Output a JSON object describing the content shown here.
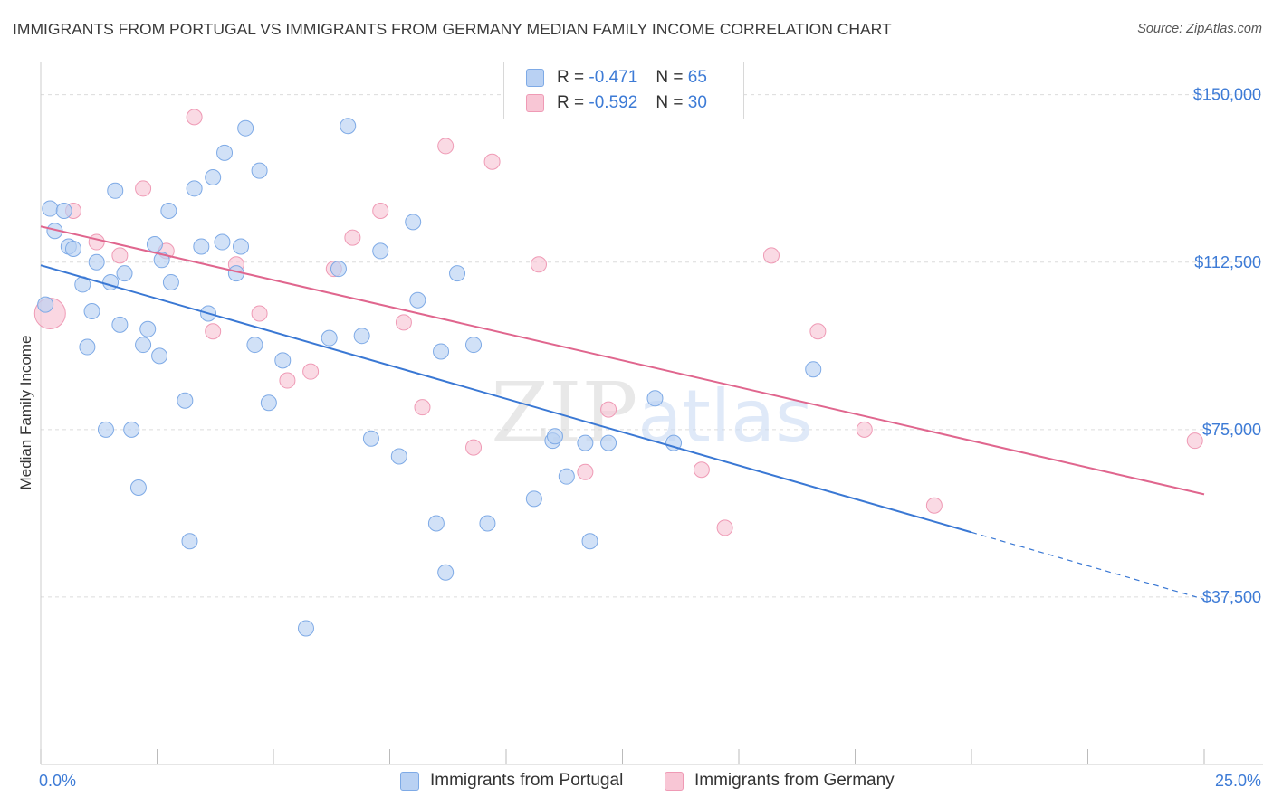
{
  "title": "IMMIGRANTS FROM PORTUGAL VS IMMIGRANTS FROM GERMANY MEDIAN FAMILY INCOME CORRELATION CHART",
  "source": "Source: ZipAtlas.com",
  "watermark": "ZIPatlas",
  "colors": {
    "blue": "#3a78d4",
    "blue_fill": "#b9d1f3",
    "blue_stroke": "#7eaae6",
    "pink": "#e0668e",
    "pink_fill": "#f8c6d5",
    "pink_stroke": "#ef9ab5",
    "tick_label": "#3d7bd6"
  },
  "legend": {
    "r_label": "R =",
    "n_label": "N =",
    "rows": [
      {
        "series": "blue",
        "r": "-0.471",
        "n": "65"
      },
      {
        "series": "pink",
        "r": "-0.592",
        "n": "30"
      }
    ]
  },
  "chart_data": {
    "type": "scatter",
    "title": "IMMIGRANTS FROM PORTUGAL VS IMMIGRANTS FROM GERMANY MEDIAN FAMILY INCOME CORRELATION CHART",
    "xlabel": "",
    "ylabel": "Median Family Income",
    "x_unit": "%",
    "xlim": [
      0,
      25
    ],
    "ylim": [
      0,
      155000
    ],
    "x_tick_labels": [
      "0.0%",
      "25.0%"
    ],
    "y_ticks": [
      37500,
      75000,
      112500,
      150000
    ],
    "y_tick_labels": [
      "$37,500",
      "$75,000",
      "$112,500",
      "$150,000"
    ],
    "grid": true,
    "series": [
      {
        "name": "Immigrants from Portugal",
        "color": "blue",
        "points": [
          [
            0.1,
            103000
          ],
          [
            0.2,
            124500
          ],
          [
            0.3,
            119500
          ],
          [
            0.5,
            124000
          ],
          [
            0.6,
            116000
          ],
          [
            0.7,
            115500
          ],
          [
            0.9,
            107500
          ],
          [
            1.0,
            93500
          ],
          [
            1.1,
            101500
          ],
          [
            1.2,
            112500
          ],
          [
            1.4,
            75000
          ],
          [
            1.5,
            108000
          ],
          [
            1.6,
            128500
          ],
          [
            1.7,
            98500
          ],
          [
            1.8,
            110000
          ],
          [
            1.95,
            75000
          ],
          [
            2.1,
            62000
          ],
          [
            2.2,
            94000
          ],
          [
            2.3,
            97500
          ],
          [
            2.45,
            116500
          ],
          [
            2.55,
            91500
          ],
          [
            2.6,
            113000
          ],
          [
            2.75,
            124000
          ],
          [
            2.8,
            108000
          ],
          [
            3.1,
            81500
          ],
          [
            3.2,
            50000
          ],
          [
            3.3,
            129000
          ],
          [
            3.45,
            116000
          ],
          [
            3.6,
            101000
          ],
          [
            3.7,
            131500
          ],
          [
            3.9,
            117000
          ],
          [
            3.95,
            137000
          ],
          [
            4.2,
            110000
          ],
          [
            4.3,
            116000
          ],
          [
            4.4,
            142500
          ],
          [
            4.6,
            94000
          ],
          [
            4.7,
            133000
          ],
          [
            4.9,
            81000
          ],
          [
            5.2,
            90500
          ],
          [
            5.7,
            30500
          ],
          [
            6.2,
            95500
          ],
          [
            6.4,
            111000
          ],
          [
            6.6,
            143000
          ],
          [
            6.9,
            96000
          ],
          [
            7.1,
            73000
          ],
          [
            7.3,
            115000
          ],
          [
            7.7,
            69000
          ],
          [
            8.0,
            121500
          ],
          [
            8.1,
            104000
          ],
          [
            8.5,
            54000
          ],
          [
            8.6,
            92500
          ],
          [
            8.7,
            43000
          ],
          [
            8.95,
            110000
          ],
          [
            9.3,
            94000
          ],
          [
            9.6,
            54000
          ],
          [
            10.6,
            59500
          ],
          [
            11.0,
            72500
          ],
          [
            11.05,
            73500
          ],
          [
            11.3,
            64500
          ],
          [
            11.7,
            72000
          ],
          [
            11.8,
            50000
          ],
          [
            12.2,
            72000
          ],
          [
            13.2,
            82000
          ],
          [
            13.6,
            72000
          ],
          [
            16.6,
            88500
          ]
        ],
        "trend": {
          "x": [
            0,
            20
          ],
          "y": [
            111800,
            52000
          ],
          "dashed_extension": {
            "x": [
              20,
              25
            ],
            "y": [
              52000,
              37000
            ]
          }
        }
      },
      {
        "name": "Immigrants from Germany",
        "color": "pink",
        "points": [
          [
            0.2,
            101000
          ],
          [
            0.7,
            124000
          ],
          [
            1.2,
            117000
          ],
          [
            1.7,
            114000
          ],
          [
            2.2,
            129000
          ],
          [
            2.7,
            115000
          ],
          [
            3.3,
            145000
          ],
          [
            3.7,
            97000
          ],
          [
            4.2,
            112000
          ],
          [
            4.7,
            101000
          ],
          [
            5.3,
            86000
          ],
          [
            5.8,
            88000
          ],
          [
            6.3,
            111000
          ],
          [
            6.7,
            118000
          ],
          [
            7.3,
            124000
          ],
          [
            7.8,
            99000
          ],
          [
            8.2,
            80000
          ],
          [
            8.7,
            138500
          ],
          [
            9.3,
            71000
          ],
          [
            9.7,
            135000
          ],
          [
            10.7,
            112000
          ],
          [
            11.7,
            65500
          ],
          [
            12.2,
            79500
          ],
          [
            14.2,
            66000
          ],
          [
            14.7,
            53000
          ],
          [
            15.7,
            114000
          ],
          [
            16.7,
            97000
          ],
          [
            17.7,
            75000
          ],
          [
            19.2,
            58000
          ],
          [
            24.8,
            72500
          ]
        ],
        "trend": {
          "x": [
            0,
            25
          ],
          "y": [
            120500,
            60500
          ]
        }
      }
    ]
  }
}
